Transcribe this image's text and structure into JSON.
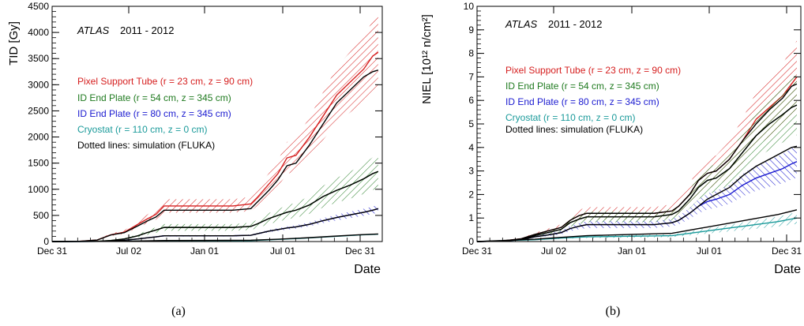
{
  "colors": {
    "pixel": "#d62020",
    "idend54": "#1f7a1f",
    "idend80": "#1a1ad0",
    "cryostat": "#1a9a9a",
    "simulation": "#000000"
  },
  "chart_data": [
    {
      "type": "line",
      "panel_label": "(a)",
      "ylabel": "TID [Gy]",
      "xlabel": "Date",
      "ylim": [
        0,
        4500
      ],
      "yticks": [
        0,
        500,
        1000,
        1500,
        2000,
        2500,
        3000,
        3500,
        4000,
        4500
      ],
      "xticks": [
        "Dec 31",
        "Jul 02",
        "Jan 01",
        "Jul 01",
        "Dec 31"
      ],
      "xlim": [
        0,
        731
      ],
      "grid": false,
      "legend_position": "upper-left",
      "annotation": {
        "experiment": "ATLAS",
        "period": "2011 - 2012"
      },
      "dotted_note": "Dotted lines: simulation (FLUKA)",
      "series": [
        {
          "name": "Pixel Support Tube (r = 23 cm, z = 90 cm)",
          "color_key": "pixel",
          "unc": 0.19,
          "x": [
            0,
            60,
            100,
            130,
            160,
            190,
            210,
            230,
            248,
            270,
            300,
            350,
            400,
            440,
            455,
            480,
            500,
            520,
            540,
            570,
            600,
            630,
            660,
            690,
            710,
            722
          ],
          "y": [
            0,
            5,
            30,
            130,
            180,
            330,
            430,
            520,
            680,
            680,
            680,
            680,
            680,
            720,
            850,
            1100,
            1300,
            1600,
            1650,
            2000,
            2400,
            2800,
            3050,
            3300,
            3550,
            3620
          ]
        },
        {
          "name": "ID End Plate (r = 54 cm, z = 345 cm)",
          "color_key": "idend54",
          "unc": 0.24,
          "x": [
            0,
            100,
            130,
            160,
            190,
            210,
            230,
            248,
            300,
            350,
            400,
            440,
            455,
            480,
            500,
            520,
            540,
            570,
            600,
            630,
            660,
            690,
            710,
            722
          ],
          "y": [
            0,
            5,
            20,
            50,
            110,
            170,
            220,
            270,
            270,
            270,
            270,
            290,
            340,
            440,
            500,
            560,
            600,
            700,
            860,
            980,
            1080,
            1200,
            1300,
            1340
          ]
        },
        {
          "name": "ID End Plate (r = 80 cm, z = 345 cm)",
          "color_key": "idend80",
          "unc": 0.12,
          "x": [
            0,
            100,
            130,
            160,
            190,
            210,
            230,
            248,
            300,
            350,
            400,
            440,
            455,
            480,
            500,
            520,
            540,
            570,
            600,
            630,
            660,
            690,
            710,
            722
          ],
          "y": [
            0,
            3,
            10,
            25,
            50,
            70,
            90,
            110,
            110,
            110,
            110,
            120,
            150,
            200,
            230,
            260,
            280,
            330,
            400,
            460,
            510,
            560,
            600,
            630
          ]
        },
        {
          "name": "Cryostat (r = 110 cm, z = 0 cm)",
          "color_key": "cryostat",
          "unc": 0.08,
          "x": [
            0,
            130,
            190,
            248,
            440,
            500,
            560,
            620,
            680,
            722
          ],
          "y": [
            0,
            3,
            8,
            15,
            18,
            40,
            65,
            95,
            125,
            140
          ]
        }
      ],
      "simulation": [
        {
          "x": [
            0,
            60,
            100,
            130,
            160,
            190,
            210,
            230,
            248,
            270,
            300,
            350,
            400,
            440,
            455,
            480,
            500,
            520,
            540,
            570,
            600,
            630,
            660,
            690,
            710,
            722
          ],
          "y": [
            0,
            5,
            30,
            125,
            170,
            300,
            390,
            470,
            600,
            600,
            600,
            600,
            600,
            630,
            760,
            980,
            1180,
            1450,
            1500,
            1850,
            2250,
            2650,
            2900,
            3150,
            3250,
            3280
          ]
        },
        {
          "x": [
            0,
            100,
            130,
            160,
            190,
            210,
            230,
            248,
            300,
            350,
            400,
            440,
            455,
            480,
            500,
            520,
            540,
            570,
            600,
            630,
            660,
            690,
            710,
            722
          ],
          "y": [
            0,
            5,
            20,
            50,
            110,
            170,
            220,
            270,
            270,
            270,
            270,
            290,
            340,
            440,
            500,
            560,
            600,
            700,
            860,
            980,
            1080,
            1200,
            1300,
            1340
          ]
        },
        {
          "x": [
            0,
            100,
            130,
            160,
            190,
            210,
            230,
            248,
            300,
            350,
            400,
            440,
            455,
            480,
            500,
            520,
            540,
            570,
            600,
            630,
            660,
            690,
            710,
            722
          ],
          "y": [
            0,
            3,
            10,
            25,
            50,
            70,
            90,
            110,
            110,
            110,
            110,
            120,
            150,
            200,
            230,
            260,
            280,
            330,
            400,
            460,
            510,
            560,
            600,
            630
          ]
        },
        {
          "x": [
            0,
            130,
            190,
            248,
            440,
            500,
            560,
            620,
            680,
            722
          ],
          "y": [
            0,
            4,
            10,
            20,
            25,
            45,
            70,
            100,
            130,
            145
          ]
        }
      ]
    },
    {
      "type": "line",
      "panel_label": "(b)",
      "ylabel": "NIEL [10¹² n/cm²]",
      "xlabel": "Date",
      "ylim": [
        0,
        10
      ],
      "yticks": [
        0,
        1,
        2,
        3,
        4,
        5,
        6,
        7,
        8,
        9,
        10
      ],
      "xticks": [
        "Dec 31",
        "Jul 02",
        "Jan 01",
        "Jul 01",
        "Dec 31"
      ],
      "xlim": [
        0,
        731
      ],
      "grid": false,
      "legend_position": "upper-left",
      "annotation": {
        "experiment": "ATLAS",
        "period": "2011 - 2012"
      },
      "dotted_note": "Dotted lines: simulation (FLUKA)",
      "series": [
        {
          "name": "Pixel Support Tube (r = 23 cm, z = 90 cm)",
          "color_key": "pixel",
          "unc": 0.22,
          "x": [
            0,
            60,
            100,
            130,
            160,
            190,
            210,
            230,
            248,
            300,
            350,
            400,
            440,
            455,
            480,
            500,
            520,
            540,
            570,
            600,
            630,
            660,
            690,
            710,
            722
          ],
          "y": [
            0,
            0.03,
            0.12,
            0.3,
            0.45,
            0.6,
            0.9,
            1.1,
            1.2,
            1.2,
            1.2,
            1.2,
            1.3,
            1.5,
            2.0,
            2.6,
            2.9,
            3.0,
            3.5,
            4.3,
            5.2,
            5.7,
            6.2,
            6.7,
            7.0
          ]
        },
        {
          "name": "ID End Plate (r = 54 cm, z = 345 cm)",
          "color_key": "idend54",
          "unc": 0.22,
          "x": [
            0,
            60,
            100,
            130,
            160,
            190,
            210,
            230,
            248,
            300,
            350,
            400,
            440,
            455,
            480,
            500,
            520,
            540,
            570,
            600,
            630,
            660,
            690,
            710,
            722
          ],
          "y": [
            0,
            0.02,
            0.1,
            0.25,
            0.38,
            0.52,
            0.8,
            0.95,
            1.05,
            1.05,
            1.05,
            1.05,
            1.15,
            1.3,
            1.8,
            2.3,
            2.6,
            2.7,
            3.1,
            3.8,
            4.5,
            5.0,
            5.4,
            5.7,
            5.8
          ]
        },
        {
          "name": "ID End Plate (r = 80 cm, z = 345 cm)",
          "color_key": "idend80",
          "unc": 0.2,
          "x": [
            0,
            60,
            100,
            130,
            160,
            190,
            210,
            230,
            248,
            300,
            350,
            400,
            440,
            455,
            480,
            500,
            520,
            540,
            570,
            600,
            630,
            660,
            690,
            710,
            722
          ],
          "y": [
            0,
            0.02,
            0.08,
            0.2,
            0.28,
            0.38,
            0.55,
            0.65,
            0.72,
            0.72,
            0.72,
            0.72,
            0.8,
            0.9,
            1.2,
            1.5,
            1.7,
            1.8,
            2.0,
            2.4,
            2.7,
            2.9,
            3.1,
            3.3,
            3.4
          ]
        },
        {
          "name": "Cryostat (r = 110 cm, z = 0 cm)",
          "color_key": "cryostat",
          "unc": 0.25,
          "x": [
            0,
            130,
            190,
            248,
            440,
            500,
            560,
            620,
            680,
            722
          ],
          "y": [
            0,
            0.08,
            0.15,
            0.2,
            0.25,
            0.4,
            0.55,
            0.7,
            0.85,
            1.0
          ]
        }
      ],
      "simulation": [
        {
          "x": [
            0,
            60,
            100,
            130,
            160,
            190,
            210,
            230,
            248,
            300,
            350,
            400,
            440,
            455,
            480,
            500,
            520,
            540,
            570,
            600,
            630,
            660,
            690,
            710,
            722
          ],
          "y": [
            0,
            0.03,
            0.12,
            0.3,
            0.45,
            0.6,
            0.9,
            1.1,
            1.2,
            1.2,
            1.2,
            1.2,
            1.3,
            1.5,
            2.0,
            2.6,
            2.9,
            3.0,
            3.5,
            4.3,
            5.0,
            5.6,
            6.1,
            6.6,
            6.7
          ]
        },
        {
          "x": [
            0,
            60,
            100,
            130,
            160,
            190,
            210,
            230,
            248,
            300,
            350,
            400,
            440,
            455,
            480,
            500,
            520,
            540,
            570,
            600,
            630,
            660,
            690,
            710,
            722
          ],
          "y": [
            0,
            0.02,
            0.1,
            0.25,
            0.38,
            0.52,
            0.8,
            0.95,
            1.05,
            1.05,
            1.05,
            1.05,
            1.15,
            1.3,
            1.8,
            2.3,
            2.6,
            2.7,
            3.1,
            3.8,
            4.5,
            5.0,
            5.4,
            5.7,
            5.8
          ]
        },
        {
          "x": [
            0,
            60,
            100,
            130,
            160,
            190,
            210,
            230,
            248,
            300,
            350,
            400,
            440,
            455,
            480,
            500,
            520,
            540,
            570,
            600,
            630,
            660,
            690,
            710,
            722
          ],
          "y": [
            0,
            0.02,
            0.08,
            0.2,
            0.28,
            0.38,
            0.55,
            0.65,
            0.72,
            0.72,
            0.72,
            0.72,
            0.8,
            0.9,
            1.2,
            1.5,
            1.8,
            2.0,
            2.3,
            2.8,
            3.2,
            3.5,
            3.8,
            4.0,
            4.05
          ]
        },
        {
          "x": [
            0,
            130,
            190,
            248,
            440,
            500,
            560,
            620,
            680,
            722
          ],
          "y": [
            0,
            0.1,
            0.18,
            0.25,
            0.35,
            0.55,
            0.75,
            0.95,
            1.15,
            1.35
          ]
        }
      ]
    }
  ]
}
